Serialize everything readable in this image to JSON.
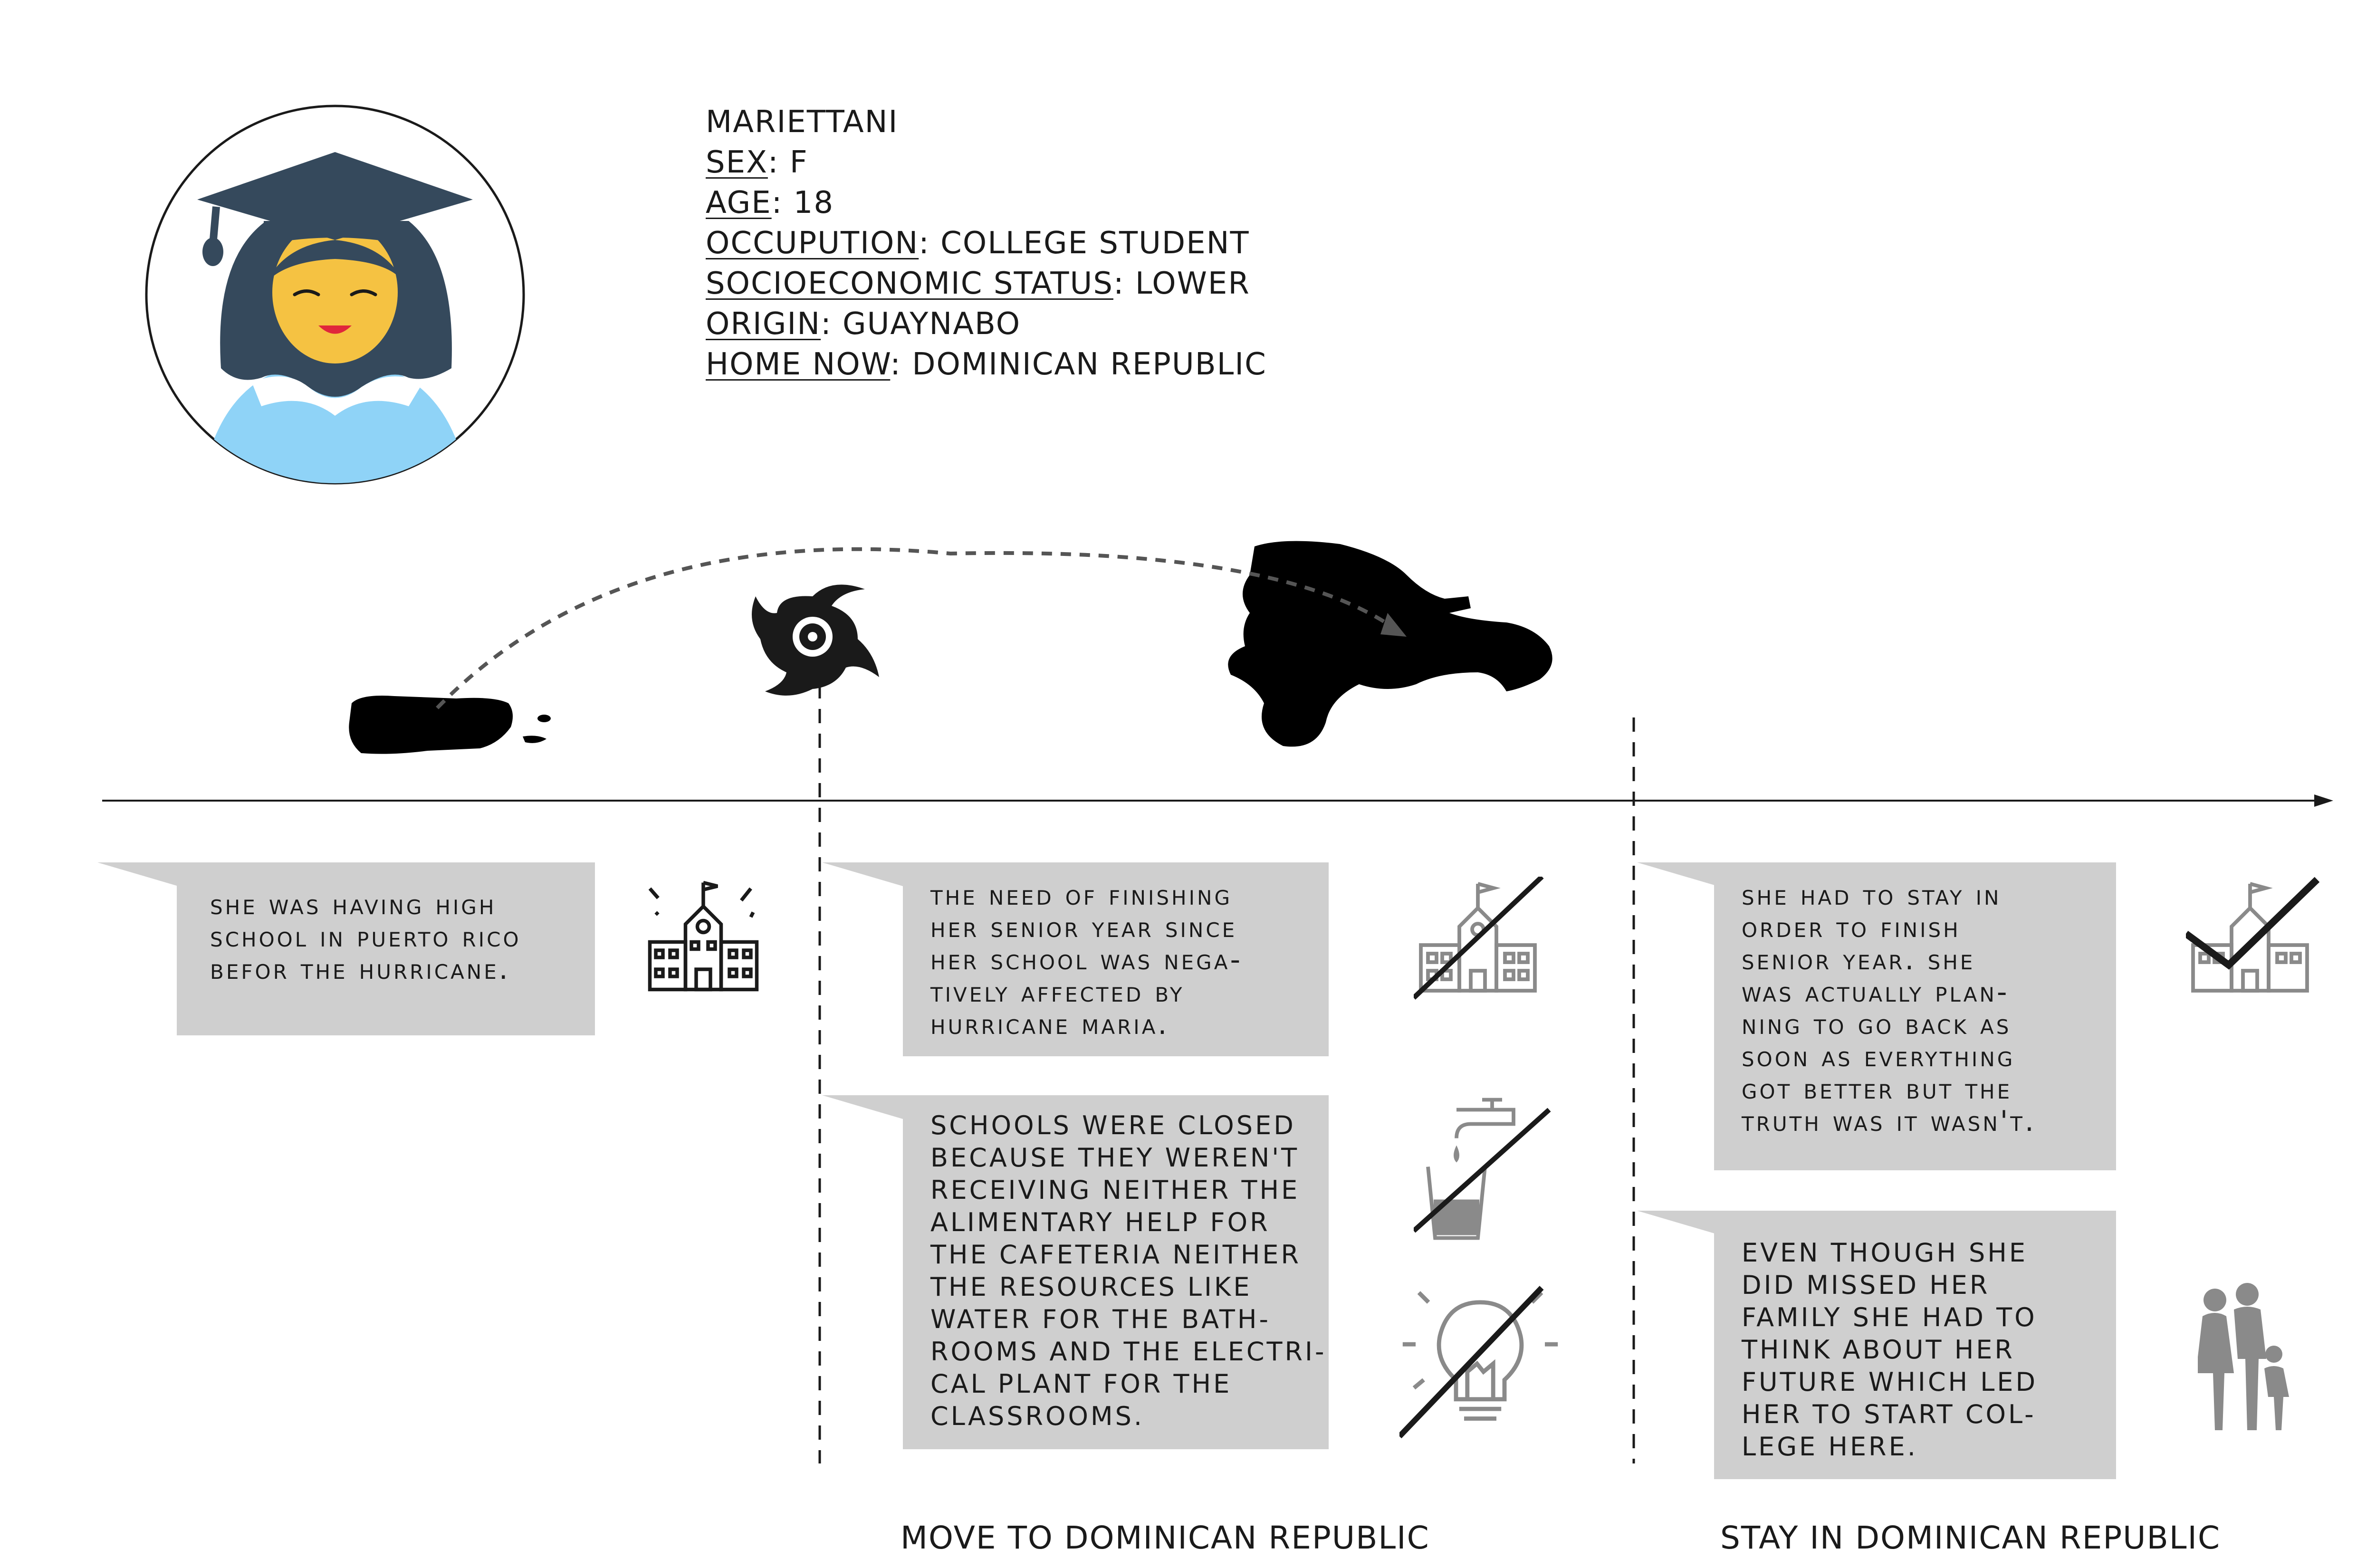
{
  "profile": {
    "name": "MARIETTANI",
    "fields": [
      {
        "key": "SEX",
        "value": ": F"
      },
      {
        "key": "AGE",
        "value": ": 18"
      },
      {
        "key": "OCCUPUTION",
        "value": ": COLLEGE STUDENT"
      },
      {
        "key": "SOCIOECONOMIC STATUS",
        "value": ": LOWER"
      },
      {
        "key": "ORIGIN",
        "value": ": GUAYNABO"
      },
      {
        "key": "HOME NOW",
        "value": ": DOMINICAN REPUBLIC"
      }
    ]
  },
  "boxes": {
    "before": "SHe was having high\nschool in Puerto Rico\nbefor the Hurricane.",
    "need": "The need of finishing\nher senior year since\nher school was nega-\ntively affected by\nhurricane Maria.",
    "closed": "SCHOOLS WERE CLOSED\nBECAUSE THEY WEREN'T\nRECEIVING NEITHER THE\nALIMENTARY HELP FOR\nTHE CAFETERIA NEITHER\nTHE RESOURCES LIKE\nWATER FOR THE BATH-\nROOMS AND THE ELECTRI-\nCAL PLANT FOR THE\nCLASSROOMS.",
    "stay": "SHe had to stay in\norder to finish\nsenior year. She\nwas actually plan-\nning to go back as\nsoon as everything\ngot better but the\ntruth was it wasn't.",
    "family": "EVEN THOUGH SHE\nDID MISSED HER\nFAMILY SHE HAD TO\nTHINK ABOUT HER\nFUTURE WHICH LED\nHER TO START COL-\nLEGE HERE."
  },
  "phases": {
    "move": "MOVE TO DOMINICAN REPUBLIC",
    "stay": "STAY IN DOMINICAN REPUBLIC"
  },
  "colors": {
    "box": "#cfcfcf",
    "hat": "#35495c",
    "face": "#f5c242",
    "shirt": "#8fd3f7",
    "mouth": "#e0263b",
    "icon_gray": "#8a8a8a"
  }
}
